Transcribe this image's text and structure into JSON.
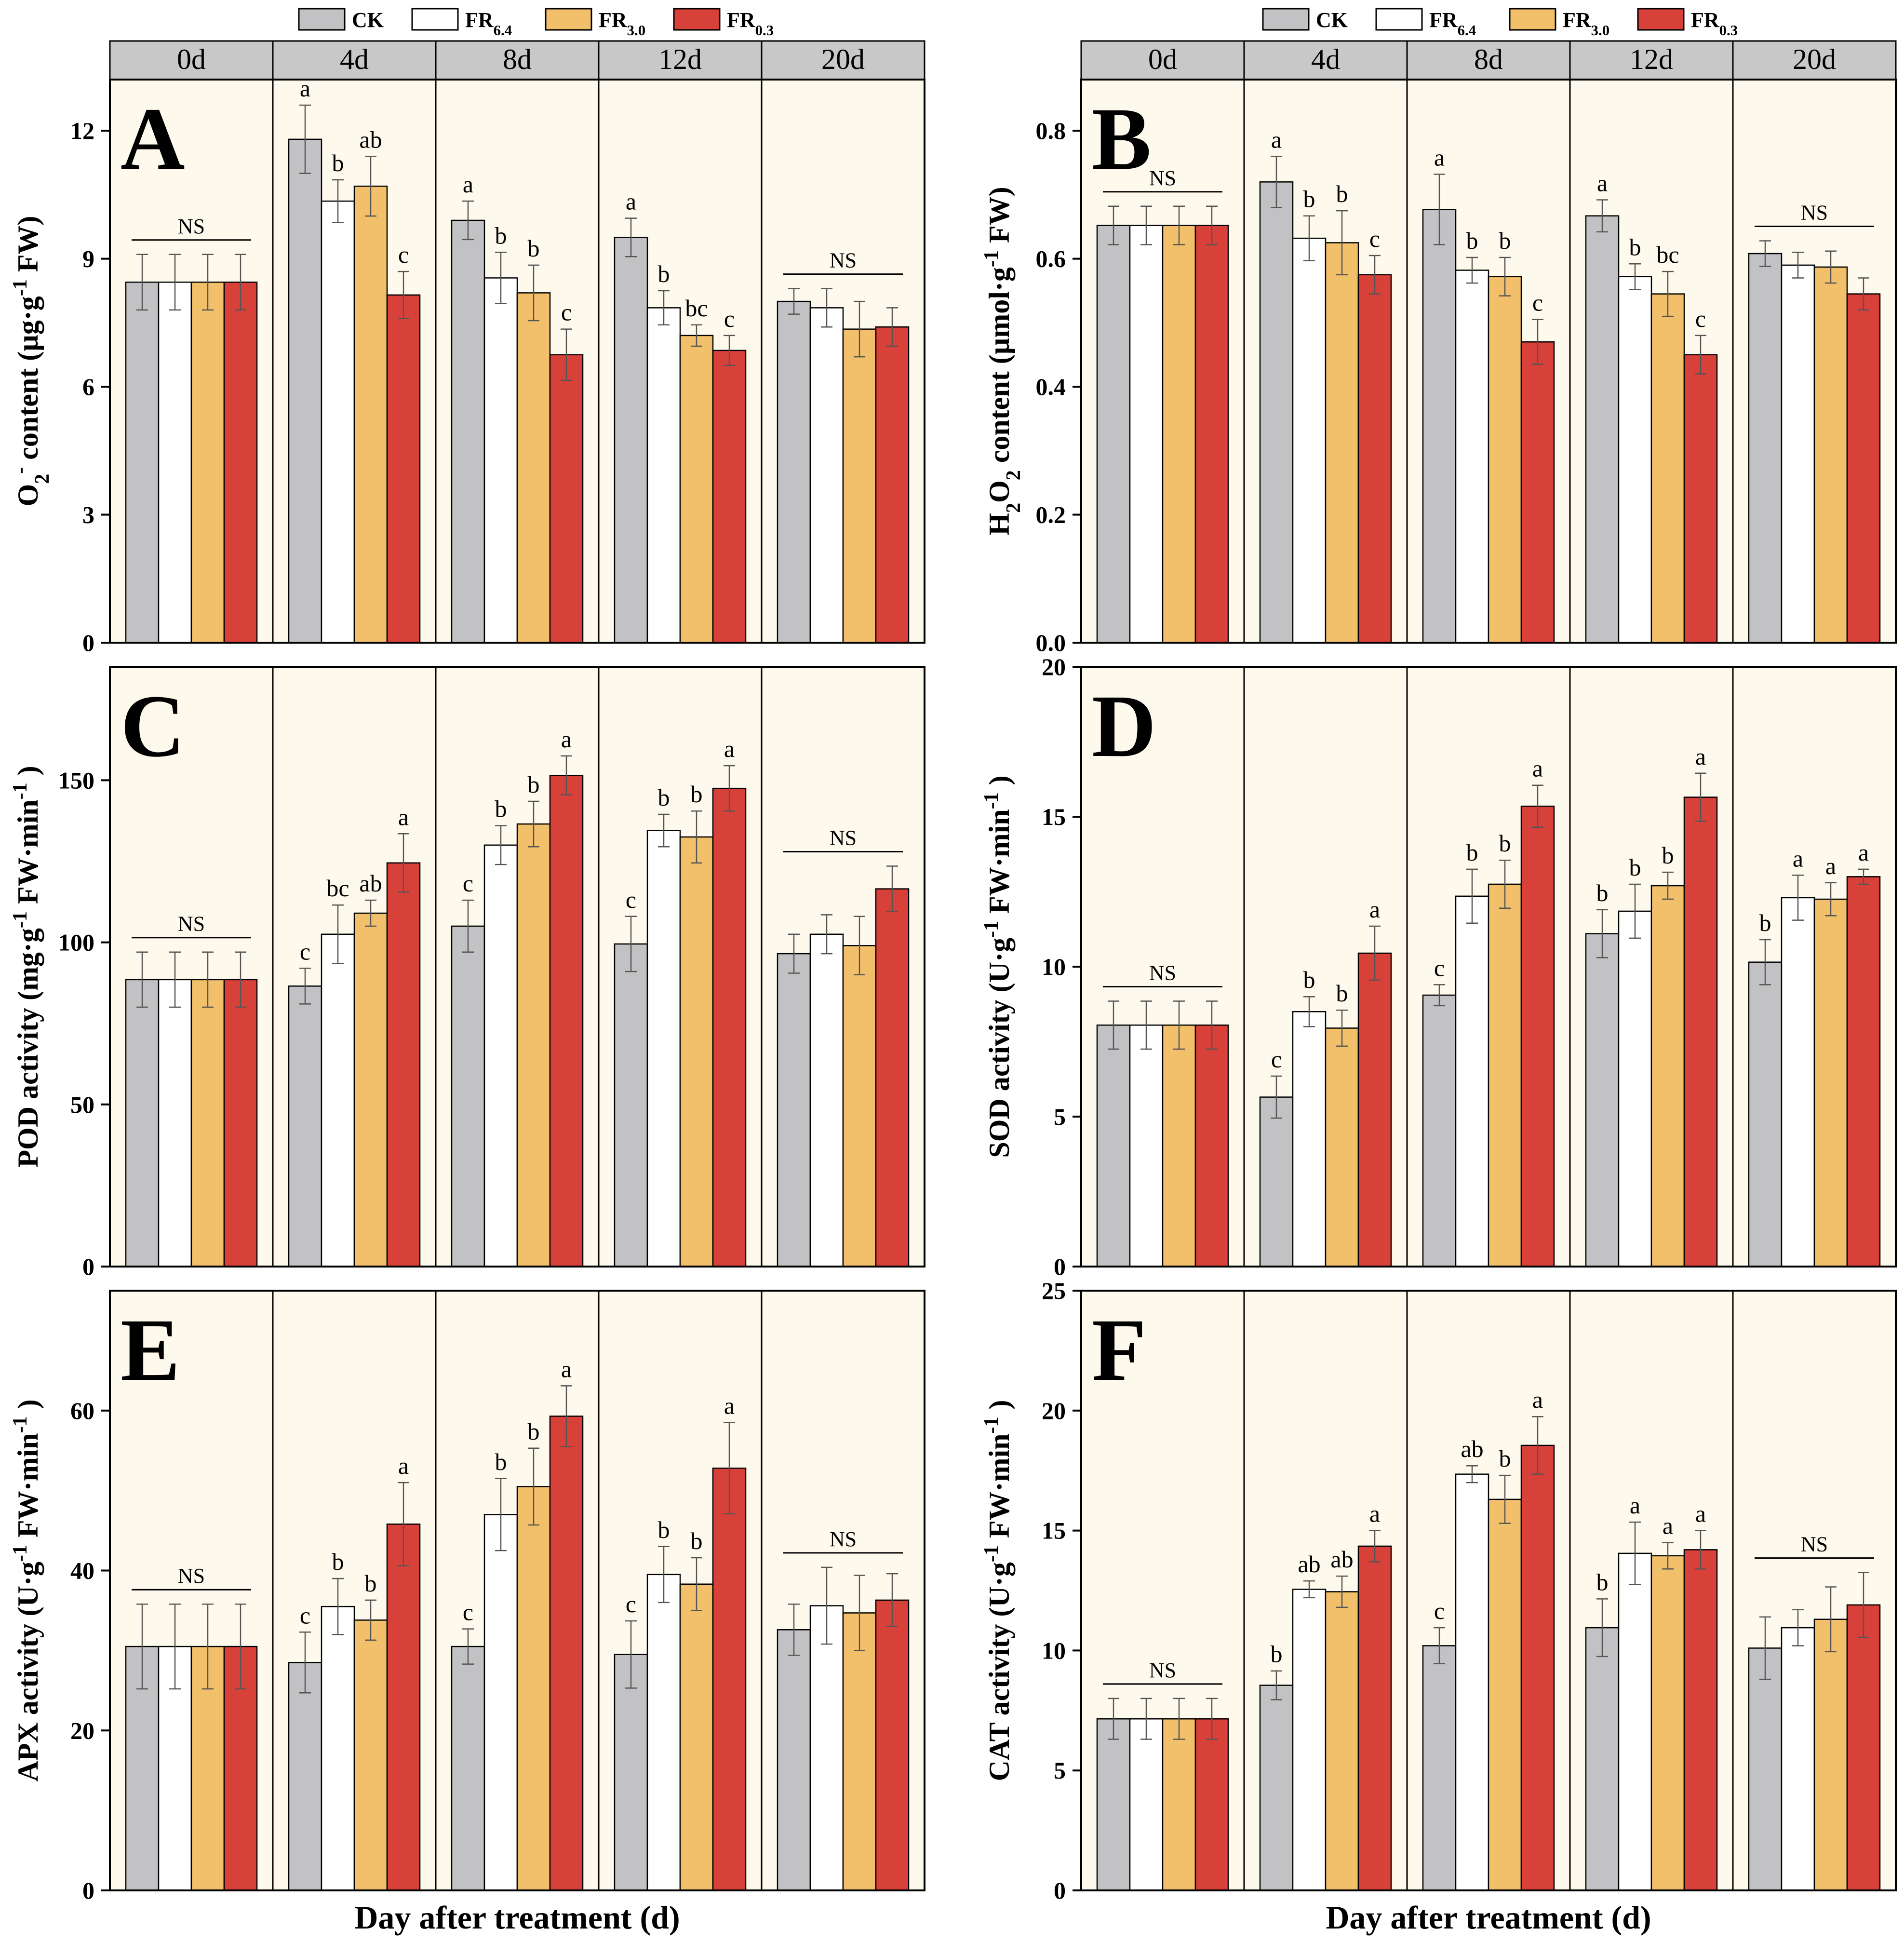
{
  "legend": [
    {
      "key": "CK",
      "base": "CK",
      "sub": "",
      "color": "#c2c2c4"
    },
    {
      "key": "FR6.4",
      "base": "FR",
      "sub": "6.4",
      "color": "#ffffff"
    },
    {
      "key": "FR3.0",
      "base": "FR",
      "sub": "3.0",
      "color": "#f2c06a"
    },
    {
      "key": "FR0.3",
      "base": "FR",
      "sub": "0.3",
      "color": "#d8403a"
    }
  ],
  "colors": {
    "panel_bg": "#fdf9ec",
    "strip_bg": "#c8c8c8",
    "axis": "#000000"
  },
  "x_axis_label": "Day after treatment (d)",
  "chart_data": [
    {
      "id": "A",
      "type": "bar",
      "ylabel": {
        "prefix": "O",
        "sub": "2",
        "sup": "-",
        "rest": " content (µg·g",
        "sup2": "-1",
        "end": " FW)"
      },
      "ylim": [
        0,
        13.2
      ],
      "yticks": [
        0,
        3,
        6,
        9,
        12
      ],
      "strip": [
        "0d",
        "4d",
        "8d",
        "12d",
        "20d"
      ],
      "series": [
        "CK",
        "FR6.4",
        "FR3.0",
        "FR0.3"
      ],
      "groups": [
        {
          "day": "0d",
          "values": [
            8.45,
            8.45,
            8.45,
            8.45
          ],
          "errors": [
            0.65,
            0.65,
            0.65,
            0.65
          ],
          "letters": [
            "",
            "",
            "",
            ""
          ],
          "ns": "NS"
        },
        {
          "day": "4d",
          "values": [
            11.8,
            10.35,
            10.7,
            8.15
          ],
          "errors": [
            0.8,
            0.5,
            0.7,
            0.55
          ],
          "letters": [
            "a",
            "b",
            "ab",
            "c"
          ],
          "ns": ""
        },
        {
          "day": "8d",
          "values": [
            9.9,
            8.55,
            8.2,
            6.75
          ],
          "errors": [
            0.45,
            0.6,
            0.65,
            0.6
          ],
          "letters": [
            "a",
            "b",
            "b",
            "c"
          ],
          "ns": ""
        },
        {
          "day": "12d",
          "values": [
            9.5,
            7.85,
            7.2,
            6.85
          ],
          "errors": [
            0.45,
            0.4,
            0.25,
            0.35
          ],
          "letters": [
            "a",
            "b",
            "bc",
            "c"
          ],
          "ns": ""
        },
        {
          "day": "20d",
          "values": [
            8.0,
            7.85,
            7.35,
            7.4
          ],
          "errors": [
            0.3,
            0.45,
            0.65,
            0.45
          ],
          "letters": [
            "",
            "",
            "",
            ""
          ],
          "ns": "NS"
        }
      ]
    },
    {
      "id": "B",
      "type": "bar",
      "ylabel": {
        "prefix": "H",
        "sub": "2",
        "mid": "O",
        "sub2": "2",
        "rest": " content (µmol·g",
        "sup2": "-1",
        "end": " FW)"
      },
      "ylim": [
        0,
        0.88
      ],
      "yticks": [
        0.0,
        0.2,
        0.4,
        0.6,
        0.8
      ],
      "strip": [
        "0d",
        "4d",
        "8d",
        "12d",
        "20d"
      ],
      "series": [
        "CK",
        "FR6.4",
        "FR3.0",
        "FR0.3"
      ],
      "groups": [
        {
          "day": "0d",
          "values": [
            0.652,
            0.652,
            0.652,
            0.652
          ],
          "errors": [
            0.03,
            0.03,
            0.03,
            0.03
          ],
          "letters": [
            "",
            "",
            "",
            ""
          ],
          "ns": "NS"
        },
        {
          "day": "4d",
          "values": [
            0.72,
            0.632,
            0.625,
            0.575
          ],
          "errors": [
            0.04,
            0.035,
            0.05,
            0.03
          ],
          "letters": [
            "a",
            "b",
            "b",
            "c"
          ],
          "ns": ""
        },
        {
          "day": "8d",
          "values": [
            0.677,
            0.582,
            0.572,
            0.47
          ],
          "errors": [
            0.055,
            0.02,
            0.03,
            0.035
          ],
          "letters": [
            "a",
            "b",
            "b",
            "c"
          ],
          "ns": ""
        },
        {
          "day": "12d",
          "values": [
            0.667,
            0.572,
            0.545,
            0.45
          ],
          "errors": [
            0.025,
            0.02,
            0.035,
            0.03
          ],
          "letters": [
            "a",
            "b",
            "bc",
            "c"
          ],
          "ns": ""
        },
        {
          "day": "20d",
          "values": [
            0.608,
            0.59,
            0.587,
            0.545
          ],
          "errors": [
            0.02,
            0.02,
            0.025,
            0.025
          ],
          "letters": [
            "",
            "",
            "",
            ""
          ],
          "ns": "NS"
        }
      ]
    },
    {
      "id": "C",
      "type": "bar",
      "ylabel": {
        "prefix": "POD activity (mg·g",
        "sup": "-1",
        "rest": " FW·min",
        "sup2": "-1",
        "end": " )"
      },
      "ylim": [
        0,
        185
      ],
      "yticks": [
        0,
        50,
        100,
        150
      ],
      "strip": [],
      "series": [
        "CK",
        "FR6.4",
        "FR3.0",
        "FR0.3"
      ],
      "groups": [
        {
          "day": "0d",
          "values": [
            88.5,
            88.5,
            88.5,
            88.5
          ],
          "errors": [
            8.5,
            8.5,
            8.5,
            8.5
          ],
          "letters": [
            "",
            "",
            "",
            ""
          ],
          "ns": "NS"
        },
        {
          "day": "4d",
          "values": [
            86.5,
            102.5,
            109.0,
            124.5
          ],
          "errors": [
            5.5,
            9.0,
            4.0,
            9.0
          ],
          "letters": [
            "c",
            "bc",
            "ab",
            "a"
          ],
          "ns": ""
        },
        {
          "day": "8d",
          "values": [
            105.0,
            130.0,
            136.5,
            151.5
          ],
          "errors": [
            8.0,
            6.0,
            7.0,
            6.0
          ],
          "letters": [
            "c",
            "b",
            "b",
            "a"
          ],
          "ns": ""
        },
        {
          "day": "12d",
          "values": [
            99.5,
            134.5,
            132.5,
            147.5
          ],
          "errors": [
            8.5,
            5.0,
            8.0,
            7.0
          ],
          "letters": [
            "c",
            "b",
            "b",
            "a"
          ],
          "ns": ""
        },
        {
          "day": "20d",
          "values": [
            96.5,
            102.5,
            99.0,
            116.5
          ],
          "errors": [
            6.0,
            6.0,
            9.0,
            7.0
          ],
          "letters": [
            "",
            "",
            "",
            ""
          ],
          "ns": "NS"
        }
      ]
    },
    {
      "id": "D",
      "type": "bar",
      "ylabel": {
        "prefix": "SOD activity (U·g",
        "sup": "-1",
        "rest": " FW·min",
        "sup2": "-1",
        "end": " )"
      },
      "ylim": [
        0,
        20
      ],
      "yticks": [
        0,
        5,
        10,
        15,
        20
      ],
      "strip": [],
      "series": [
        "CK",
        "FR6.4",
        "FR3.0",
        "FR0.3"
      ],
      "groups": [
        {
          "day": "0d",
          "values": [
            8.05,
            8.05,
            8.05,
            8.05
          ],
          "errors": [
            0.8,
            0.8,
            0.8,
            0.8
          ],
          "letters": [
            "",
            "",
            "",
            ""
          ],
          "ns": "NS"
        },
        {
          "day": "4d",
          "values": [
            5.65,
            8.5,
            7.95,
            10.45
          ],
          "errors": [
            0.7,
            0.5,
            0.6,
            0.9
          ],
          "letters": [
            "c",
            "b",
            "b",
            "a"
          ],
          "ns": ""
        },
        {
          "day": "8d",
          "values": [
            9.05,
            12.35,
            12.75,
            15.35
          ],
          "errors": [
            0.35,
            0.9,
            0.8,
            0.7
          ],
          "letters": [
            "c",
            "b",
            "b",
            "a"
          ],
          "ns": ""
        },
        {
          "day": "12d",
          "values": [
            11.1,
            11.85,
            12.7,
            15.65
          ],
          "errors": [
            0.8,
            0.9,
            0.45,
            0.8
          ],
          "letters": [
            "b",
            "b",
            "b",
            "a"
          ],
          "ns": ""
        },
        {
          "day": "20d",
          "values": [
            10.15,
            12.3,
            12.25,
            13.0
          ],
          "errors": [
            0.75,
            0.75,
            0.55,
            0.25
          ],
          "letters": [
            "b",
            "a",
            "a",
            "a"
          ],
          "ns": ""
        }
      ]
    },
    {
      "id": "E",
      "type": "bar",
      "ylabel": {
        "prefix": "APX activity  (U·g",
        "sup": "-1",
        "rest": " FW·min",
        "sup2": "-1",
        "end": " )"
      },
      "ylim": [
        0,
        75
      ],
      "yticks": [
        0,
        20,
        40,
        60
      ],
      "strip": [],
      "series": [
        "CK",
        "FR6.4",
        "FR3.0",
        "FR0.3"
      ],
      "groups": [
        {
          "day": "0d",
          "values": [
            30.5,
            30.5,
            30.5,
            30.5
          ],
          "errors": [
            5.3,
            5.3,
            5.3,
            5.3
          ],
          "letters": [
            "",
            "",
            "",
            ""
          ],
          "ns": "NS"
        },
        {
          "day": "4d",
          "values": [
            28.5,
            35.5,
            33.8,
            45.8
          ],
          "errors": [
            3.8,
            3.5,
            2.5,
            5.2
          ],
          "letters": [
            "c",
            "b",
            "b",
            "a"
          ],
          "ns": ""
        },
        {
          "day": "8d",
          "values": [
            30.5,
            47.0,
            50.5,
            59.3
          ],
          "errors": [
            2.2,
            4.5,
            4.8,
            3.8
          ],
          "letters": [
            "c",
            "b",
            "b",
            "a"
          ],
          "ns": ""
        },
        {
          "day": "12d",
          "values": [
            29.5,
            39.5,
            38.3,
            52.8
          ],
          "errors": [
            4.2,
            3.5,
            3.3,
            5.7
          ],
          "letters": [
            "c",
            "b",
            "b",
            "a"
          ],
          "ns": ""
        },
        {
          "day": "20d",
          "values": [
            32.6,
            35.6,
            34.7,
            36.3
          ],
          "errors": [
            3.2,
            4.8,
            4.7,
            3.3
          ],
          "letters": [
            "",
            "",
            "",
            ""
          ],
          "ns": "NS"
        }
      ]
    },
    {
      "id": "F",
      "type": "bar",
      "ylabel": {
        "prefix": "CAT activity  (U·g",
        "sup": "-1",
        "rest": " FW·min",
        "sup2": "-1",
        "end": " )"
      },
      "ylim": [
        0,
        25
      ],
      "yticks": [
        0,
        5,
        10,
        15,
        20,
        25
      ],
      "strip": [],
      "series": [
        "CK",
        "FR6.4",
        "FR3.0",
        "FR0.3"
      ],
      "groups": [
        {
          "day": "0d",
          "values": [
            7.15,
            7.15,
            7.15,
            7.15
          ],
          "errors": [
            0.85,
            0.85,
            0.85,
            0.85
          ],
          "letters": [
            "",
            "",
            "",
            ""
          ],
          "ns": "NS"
        },
        {
          "day": "4d",
          "values": [
            8.55,
            12.55,
            12.45,
            14.35
          ],
          "errors": [
            0.6,
            0.35,
            0.65,
            0.65
          ],
          "letters": [
            "b",
            "ab",
            "ab",
            "a"
          ],
          "ns": ""
        },
        {
          "day": "8d",
          "values": [
            10.2,
            17.35,
            16.3,
            18.55
          ],
          "errors": [
            0.75,
            0.35,
            1.0,
            1.2
          ],
          "letters": [
            "c",
            "ab",
            "b",
            "a"
          ],
          "ns": ""
        },
        {
          "day": "12d",
          "values": [
            10.95,
            14.05,
            13.95,
            14.2
          ],
          "errors": [
            1.2,
            1.3,
            0.55,
            0.8
          ],
          "letters": [
            "b",
            "a",
            "a",
            "a"
          ],
          "ns": ""
        },
        {
          "day": "20d",
          "values": [
            10.1,
            10.95,
            11.3,
            11.9
          ],
          "errors": [
            1.3,
            0.75,
            1.35,
            1.35
          ],
          "letters": [
            "",
            "",
            "",
            ""
          ],
          "ns": "NS"
        }
      ]
    }
  ]
}
